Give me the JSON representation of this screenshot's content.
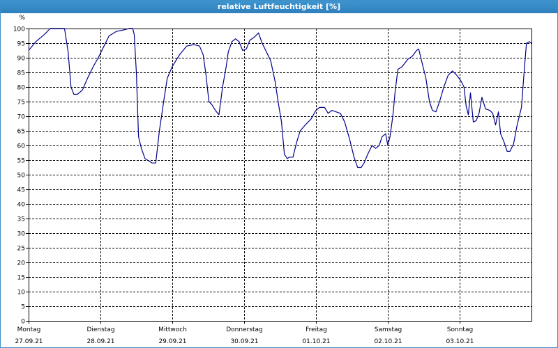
{
  "window": {
    "title": "relative Luftfeuchtigkeit [%]"
  },
  "chart_data": {
    "type": "line",
    "title": "relative Luftfeuchtigkeit [%]",
    "ylabel": "%",
    "xlabel": "",
    "ylim": [
      0,
      100
    ],
    "yticks": [
      0,
      5,
      10,
      15,
      20,
      25,
      30,
      35,
      40,
      45,
      50,
      55,
      60,
      65,
      70,
      75,
      80,
      85,
      90,
      95,
      100
    ],
    "grid": true,
    "line_color": "#00008b",
    "x_unit": "day index (0 = Montag 27.09.21)",
    "xlim": [
      0,
      7
    ],
    "days": [
      {
        "weekday": "Montag",
        "date": "27.09.21"
      },
      {
        "weekday": "Dienstag",
        "date": "28.09.21"
      },
      {
        "weekday": "Mittwoch",
        "date": "29.09.21"
      },
      {
        "weekday": "Donnerstag",
        "date": "30.09.21"
      },
      {
        "weekday": "Freitag",
        "date": "01.10.21"
      },
      {
        "weekday": "Samstag",
        "date": "02.10.21"
      },
      {
        "weekday": "Sonntag",
        "date": "03.10.21"
      }
    ],
    "series": [
      {
        "points": [
          [
            0.0,
            92.5
          ],
          [
            0.1,
            95.5
          ],
          [
            0.22,
            98
          ],
          [
            0.3,
            100
          ],
          [
            0.5,
            100
          ],
          [
            0.55,
            92
          ],
          [
            0.59,
            80
          ],
          [
            0.63,
            77.5
          ],
          [
            0.68,
            77.5
          ],
          [
            0.75,
            79
          ],
          [
            0.82,
            83
          ],
          [
            0.9,
            87
          ],
          [
            0.97,
            90
          ],
          [
            1.05,
            94
          ],
          [
            1.12,
            97.5
          ],
          [
            1.22,
            99
          ],
          [
            1.32,
            99.5
          ],
          [
            1.4,
            100
          ],
          [
            1.45,
            100
          ],
          [
            1.47,
            98
          ],
          [
            1.5,
            85
          ],
          [
            1.53,
            63
          ],
          [
            1.57,
            59
          ],
          [
            1.62,
            55.5
          ],
          [
            1.72,
            54
          ],
          [
            1.77,
            54
          ],
          [
            1.82,
            65
          ],
          [
            1.88,
            75
          ],
          [
            1.93,
            83
          ],
          [
            2.0,
            87
          ],
          [
            2.1,
            91
          ],
          [
            2.2,
            94
          ],
          [
            2.3,
            94.5
          ],
          [
            2.38,
            94
          ],
          [
            2.43,
            91
          ],
          [
            2.47,
            84
          ],
          [
            2.51,
            75
          ],
          [
            2.55,
            74
          ],
          [
            2.6,
            72
          ],
          [
            2.65,
            70.5
          ],
          [
            2.7,
            80
          ],
          [
            2.75,
            87
          ],
          [
            2.78,
            92
          ],
          [
            2.83,
            95.5
          ],
          [
            2.88,
            96.5
          ],
          [
            2.93,
            95.5
          ],
          [
            2.98,
            92.5
          ],
          [
            3.03,
            93
          ],
          [
            3.08,
            96
          ],
          [
            3.14,
            97
          ],
          [
            3.2,
            98.5
          ],
          [
            3.25,
            95
          ],
          [
            3.32,
            91.5
          ],
          [
            3.37,
            89
          ],
          [
            3.43,
            82
          ],
          [
            3.48,
            74
          ],
          [
            3.52,
            68
          ],
          [
            3.56,
            57
          ],
          [
            3.6,
            55.5
          ],
          [
            3.63,
            56
          ],
          [
            3.68,
            56
          ],
          [
            3.73,
            61
          ],
          [
            3.78,
            65
          ],
          [
            3.85,
            67
          ],
          [
            3.93,
            69
          ],
          [
            4.0,
            72
          ],
          [
            4.05,
            73
          ],
          [
            4.12,
            73
          ],
          [
            4.17,
            71
          ],
          [
            4.22,
            72
          ],
          [
            4.28,
            71.5
          ],
          [
            4.34,
            71
          ],
          [
            4.4,
            68
          ],
          [
            4.47,
            62
          ],
          [
            4.53,
            56
          ],
          [
            4.58,
            52.5
          ],
          [
            4.63,
            52.5
          ],
          [
            4.67,
            54
          ],
          [
            4.72,
            57
          ],
          [
            4.78,
            60
          ],
          [
            4.83,
            59
          ],
          [
            4.88,
            60
          ],
          [
            4.92,
            63
          ],
          [
            4.97,
            64
          ],
          [
            5.0,
            60
          ],
          [
            5.03,
            63
          ],
          [
            5.07,
            70
          ],
          [
            5.1,
            78
          ],
          [
            5.14,
            86
          ],
          [
            5.2,
            87
          ],
          [
            5.28,
            89.5
          ],
          [
            5.34,
            90.5
          ],
          [
            5.4,
            92.5
          ],
          [
            5.43,
            93
          ],
          [
            5.48,
            88
          ],
          [
            5.53,
            83
          ],
          [
            5.58,
            75
          ],
          [
            5.62,
            72
          ],
          [
            5.67,
            71.5
          ],
          [
            5.72,
            75
          ],
          [
            5.78,
            80
          ],
          [
            5.84,
            84
          ],
          [
            5.9,
            85.5
          ],
          [
            5.96,
            84
          ],
          [
            6.02,
            82
          ],
          [
            6.06,
            80
          ],
          [
            6.09,
            73.5
          ],
          [
            6.12,
            70.5
          ],
          [
            6.15,
            78
          ],
          [
            6.19,
            68
          ],
          [
            6.23,
            68.5
          ],
          [
            6.27,
            71
          ],
          [
            6.31,
            76.5
          ],
          [
            6.36,
            72.5
          ],
          [
            6.42,
            72
          ],
          [
            6.46,
            71
          ],
          [
            6.5,
            67
          ],
          [
            6.54,
            71.5
          ],
          [
            6.57,
            64
          ],
          [
            6.62,
            61
          ],
          [
            6.66,
            58
          ],
          [
            6.7,
            58
          ],
          [
            6.75,
            60.5
          ],
          [
            6.8,
            67
          ],
          [
            6.86,
            73
          ],
          [
            6.9,
            86
          ],
          [
            6.93,
            95
          ],
          [
            6.97,
            95.5
          ],
          [
            7.0,
            95
          ]
        ]
      }
    ]
  }
}
